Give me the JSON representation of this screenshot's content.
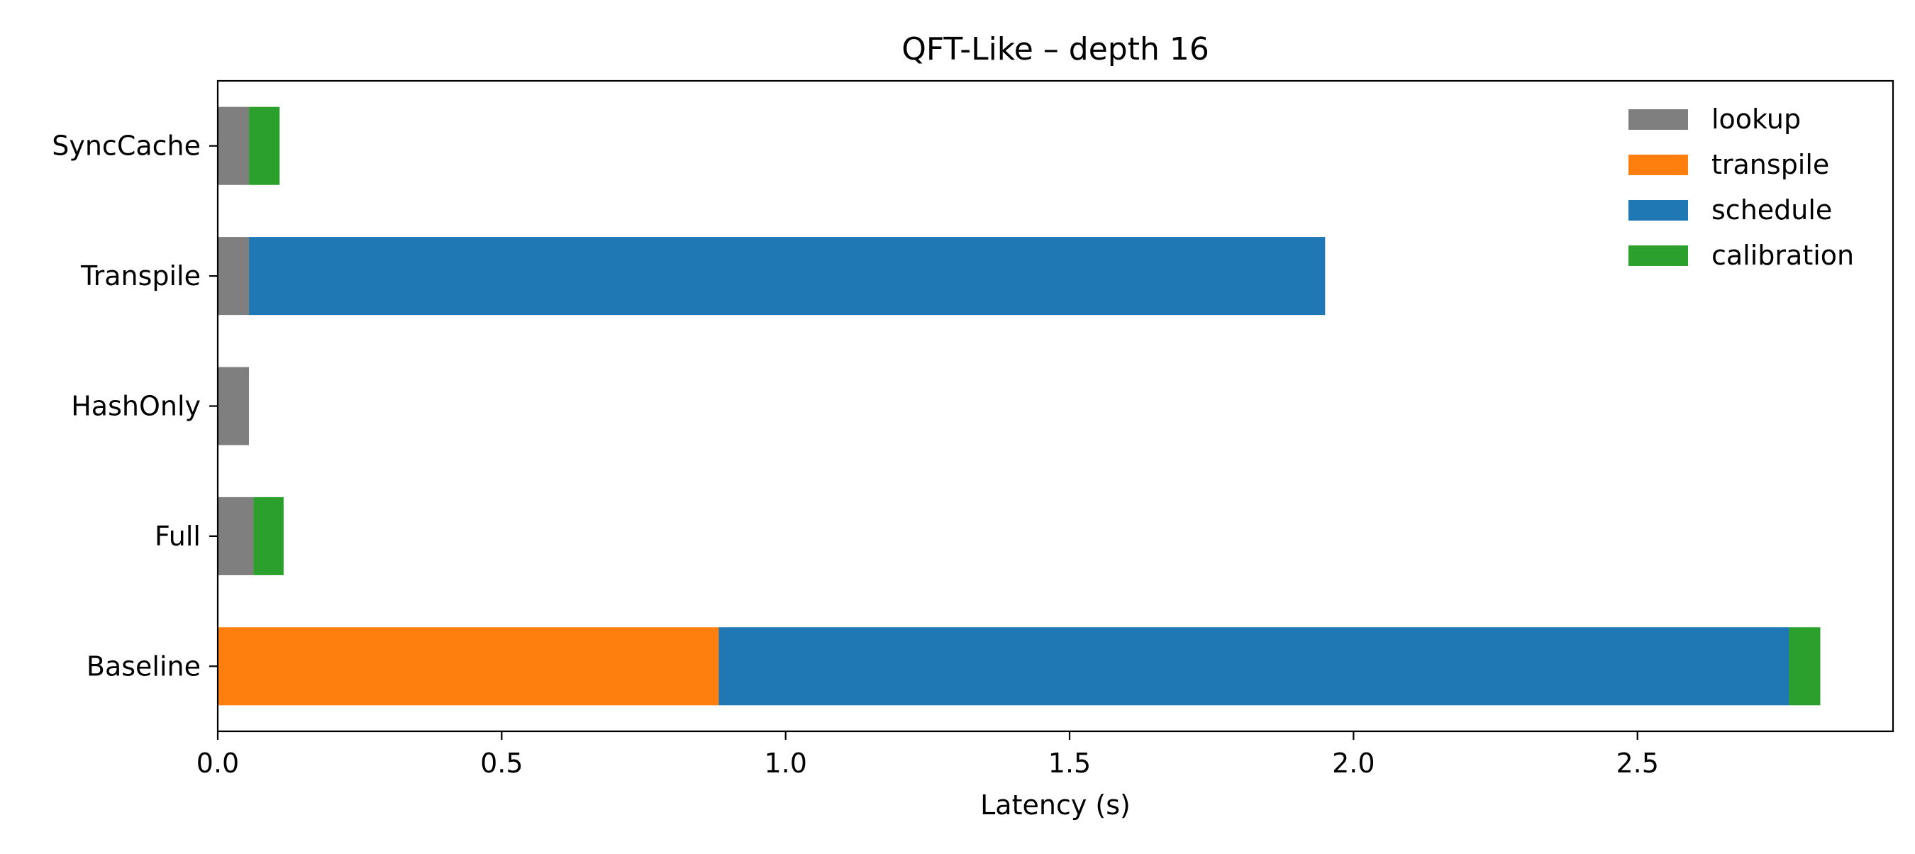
{
  "chart_data": {
    "type": "bar",
    "orientation": "horizontal",
    "stacked": true,
    "title": "QFT-Like – depth 16",
    "xlabel": "Latency (s)",
    "ylabel": "",
    "xlim": [
      0,
      2.95
    ],
    "xticks": [
      "0.0",
      "0.5",
      "1.0",
      "1.5",
      "2.0",
      "2.5"
    ],
    "categories": [
      "Baseline",
      "Full",
      "HashOnly",
      "Transpile",
      "SyncCache"
    ],
    "series": [
      {
        "name": "lookup",
        "color": "#7f7f7f",
        "values": [
          0.0,
          0.063,
          0.055,
          0.055,
          0.055
        ]
      },
      {
        "name": "transpile",
        "color": "#ff7f0e",
        "values": [
          0.882,
          0.0,
          0.0,
          0.0,
          0.0
        ]
      },
      {
        "name": "schedule",
        "color": "#1f77b4",
        "values": [
          1.885,
          0.0,
          0.0,
          1.895,
          0.0
        ]
      },
      {
        "name": "calibration",
        "color": "#2ca02c",
        "values": [
          0.055,
          0.053,
          0.0,
          0.0,
          0.054
        ]
      }
    ],
    "grid": false,
    "legend": "upper right"
  }
}
